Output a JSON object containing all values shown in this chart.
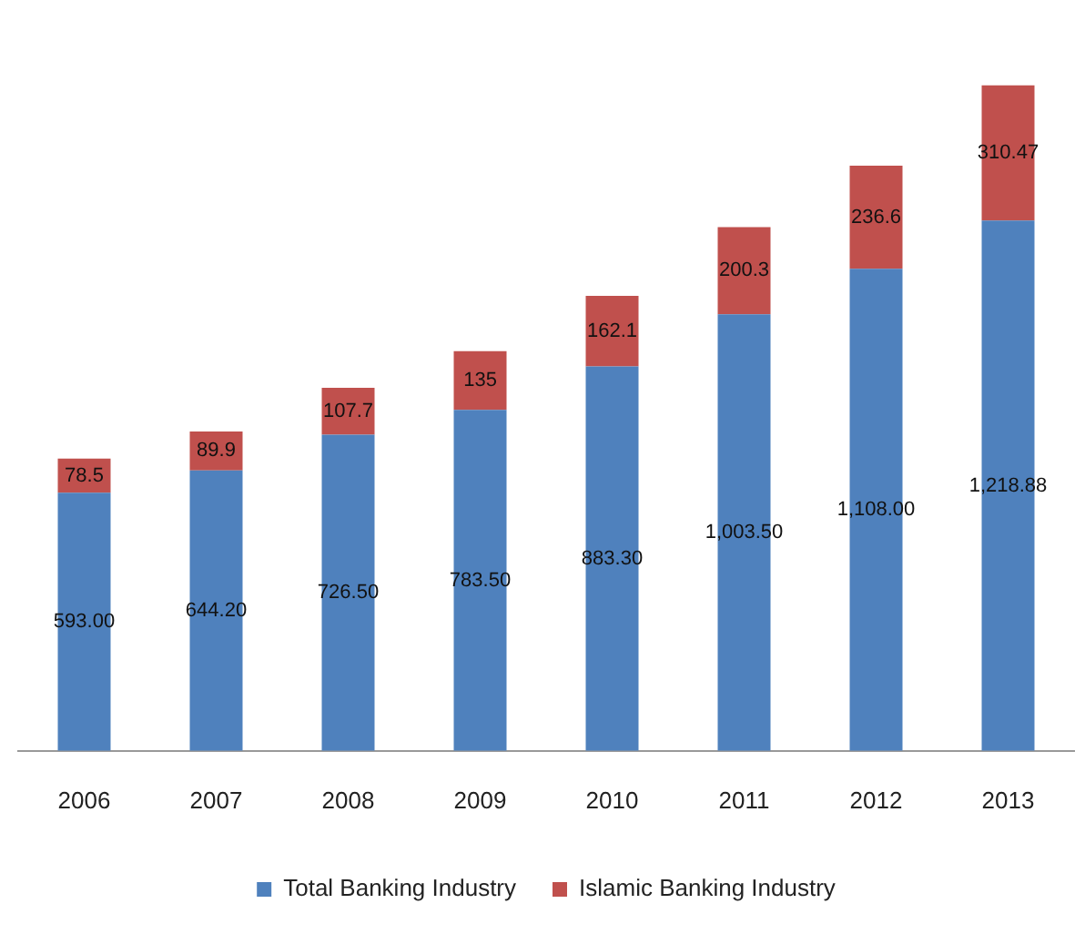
{
  "chart_data": {
    "type": "bar",
    "stacked": true,
    "categories": [
      "2006",
      "2007",
      "2008",
      "2009",
      "2010",
      "2011",
      "2012",
      "2013"
    ],
    "series": [
      {
        "name": "Total Banking Industry",
        "color": "#4f81bd",
        "values": [
          593.0,
          644.2,
          726.5,
          783.5,
          883.3,
          1003.5,
          1108.0,
          1218.88
        ],
        "value_labels": [
          "593.00",
          "644.20",
          "726.50",
          "783.50",
          "883.30",
          "1,003.50",
          "1,108.00",
          "1,218.88"
        ]
      },
      {
        "name": "Islamic Banking Industry",
        "color": "#c0504d",
        "values": [
          78.5,
          89.9,
          107.7,
          135,
          162.1,
          200.3,
          236.6,
          310.47
        ],
        "value_labels": [
          "78.5",
          "89.9",
          "107.7",
          "135",
          "162.1",
          "200.3",
          "236.6",
          "310.47"
        ]
      }
    ],
    "grid": false,
    "legend": "bottom"
  }
}
